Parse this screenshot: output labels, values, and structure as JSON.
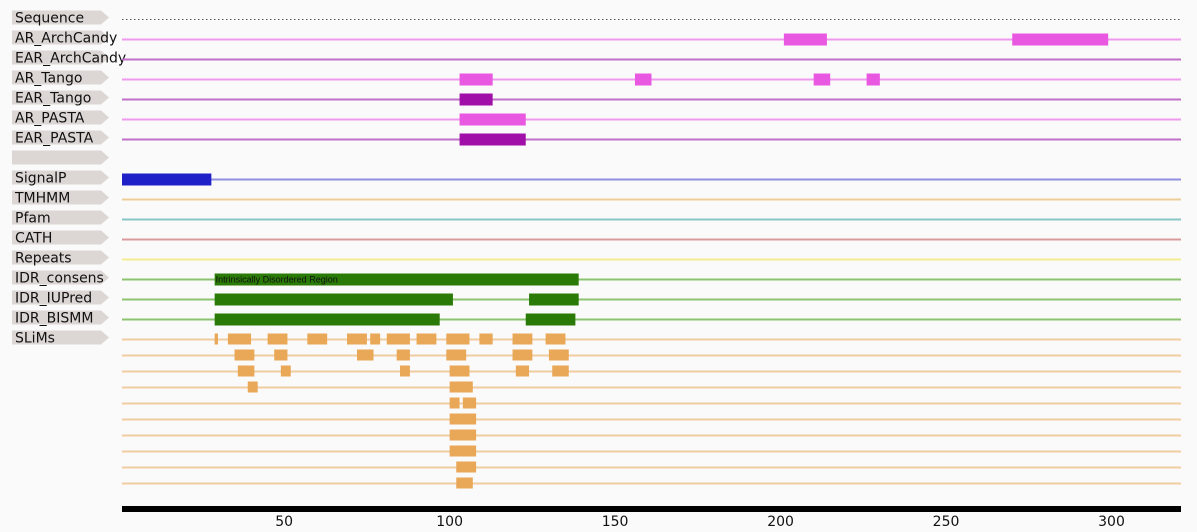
{
  "tracks": [
    {
      "label": "Sequence",
      "kind": "sequence"
    },
    {
      "label": "AR_ArchCandy",
      "color": "#e858e0",
      "line": "#ee9aee",
      "features": [
        [
          201,
          214
        ],
        [
          270,
          299
        ]
      ]
    },
    {
      "label": "EAR_ArchCandy",
      "color": "#a010a8",
      "line": "#c070c8",
      "features": []
    },
    {
      "label": "AR_Tango",
      "color": "#e858e0",
      "line": "#ee9aee",
      "features": [
        [
          103,
          113
        ],
        [
          156,
          161
        ],
        [
          210,
          215
        ],
        [
          226,
          230
        ]
      ]
    },
    {
      "label": "EAR_Tango",
      "color": "#a010a8",
      "line": "#c070c8",
      "features": [
        [
          103,
          113
        ]
      ]
    },
    {
      "label": "AR_PASTA",
      "color": "#e858e0",
      "line": "#ee9aee",
      "features": [
        [
          103,
          123
        ]
      ]
    },
    {
      "label": "EAR_PASTA",
      "color": "#a010a8",
      "line": "#c070c8",
      "features": [
        [
          103,
          123
        ]
      ]
    },
    {
      "label": "",
      "kind": "blank"
    },
    {
      "label": "SignalP",
      "color": "#2020c8",
      "line": "#8f8fe0",
      "features": [
        [
          1,
          28
        ]
      ]
    },
    {
      "label": "TMHMM",
      "color": "#e8c080",
      "line": "#eccd98",
      "features": []
    },
    {
      "label": "Pfam",
      "color": "#40a0a0",
      "line": "#88c6c6",
      "features": []
    },
    {
      "label": "CATH",
      "color": "#c86060",
      "line": "#d89a9a",
      "features": []
    },
    {
      "label": "Repeats",
      "color": "#f0e040",
      "line": "#f4ec90",
      "features": []
    },
    {
      "label": "IDR_consens",
      "color": "#2a7a08",
      "line": "#8cc470",
      "features": [
        [
          29,
          139
        ]
      ],
      "feature_text": "Intrinsically Disordered Region"
    },
    {
      "label": "IDR_IUPred",
      "color": "#2a7a08",
      "line": "#8cc470",
      "features": [
        [
          29,
          101
        ],
        [
          124,
          139
        ]
      ]
    },
    {
      "label": "IDR_BISMM",
      "color": "#2a7a08",
      "line": "#8cc470",
      "features": [
        [
          29,
          97
        ],
        [
          123,
          138
        ]
      ]
    },
    {
      "label": "SLiMs",
      "color": "#e8a858",
      "line": "#f0cca0",
      "kind": "slims",
      "rows": [
        [
          [
            29,
            30
          ],
          [
            33,
            40
          ],
          [
            45,
            51
          ],
          [
            57,
            63
          ],
          [
            69,
            75
          ],
          [
            76,
            79
          ],
          [
            81,
            88
          ],
          [
            90,
            96
          ],
          [
            99,
            106
          ],
          [
            109,
            113
          ],
          [
            119,
            125
          ],
          [
            129,
            135
          ]
        ],
        [
          [
            35,
            41
          ],
          [
            47,
            51
          ],
          [
            72,
            77
          ],
          [
            84,
            88
          ],
          [
            99,
            105
          ],
          [
            119,
            125
          ],
          [
            130,
            136
          ]
        ],
        [
          [
            36,
            41
          ],
          [
            49,
            52
          ],
          [
            85,
            88
          ],
          [
            100,
            106
          ],
          [
            120,
            124
          ],
          [
            131,
            136
          ]
        ],
        [
          [
            39,
            42
          ],
          [
            100,
            107
          ]
        ],
        [
          [
            100,
            103
          ],
          [
            104,
            108
          ]
        ],
        [
          [
            100,
            108
          ]
        ],
        [
          [
            100,
            108
          ]
        ],
        [
          [
            100,
            108
          ]
        ],
        [
          [
            102,
            108
          ]
        ],
        [
          [
            102,
            107
          ]
        ]
      ]
    }
  ],
  "axis": {
    "min": 1,
    "max": 321,
    "ticks": [
      50,
      100,
      150,
      200,
      250,
      300
    ]
  }
}
